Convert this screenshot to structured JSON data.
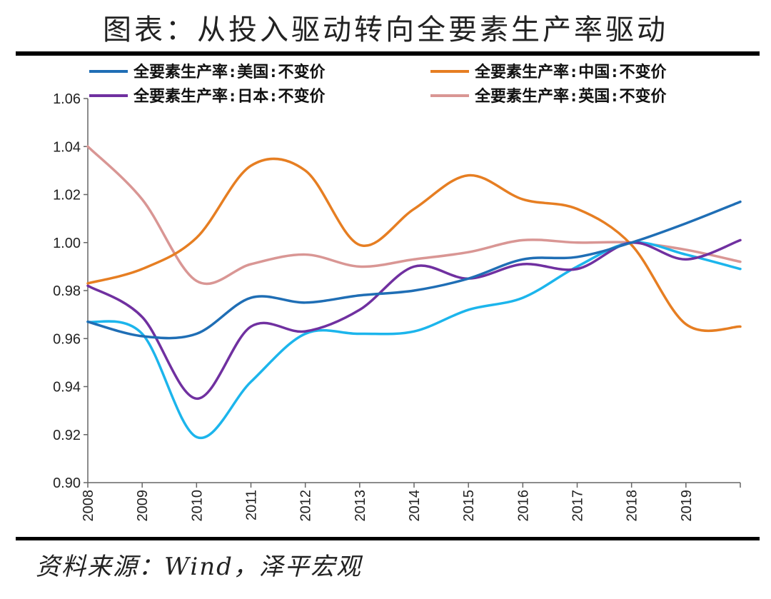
{
  "title": "图表：从投入驱动转向全要素生产率驱动",
  "source": "资料来源：Wind，泽平宏观",
  "chart_data": {
    "type": "line",
    "x": [
      2008,
      2009,
      2010,
      2011,
      2012,
      2013,
      2014,
      2015,
      2016,
      2017,
      2018,
      2019,
      2020
    ],
    "x_tick_labels": [
      "2008",
      "2009",
      "2010",
      "2011",
      "2012",
      "2013",
      "2014",
      "2015",
      "2016",
      "2017",
      "2018",
      "2019"
    ],
    "ylim": [
      0.9,
      1.06
    ],
    "y_ticks": [
      0.9,
      0.92,
      0.94,
      0.96,
      0.98,
      1.0,
      1.02,
      1.04,
      1.06
    ],
    "y_tick_labels": [
      "0.90",
      "0.92",
      "0.94",
      "0.96",
      "0.98",
      "1.00",
      "1.02",
      "1.04",
      "1.06"
    ],
    "legend_position": "top",
    "series": [
      {
        "name": "全要素生产率:美国:不变价",
        "color": "#1f6eb5",
        "values": [
          0.967,
          0.961,
          0.962,
          0.977,
          0.975,
          0.978,
          0.98,
          0.985,
          0.993,
          0.994,
          1.0,
          1.008,
          1.017
        ]
      },
      {
        "name": "全要素生产率:中国:不变价",
        "color": "#e67e22",
        "values": [
          0.983,
          0.989,
          1.002,
          1.032,
          1.03,
          0.999,
          1.014,
          1.028,
          1.018,
          1.014,
          0.999,
          0.966,
          0.965
        ]
      },
      {
        "name": "全要素生产率:日本:不变价",
        "color": "#7030a0",
        "values": [
          0.982,
          0.969,
          0.935,
          0.965,
          0.963,
          0.972,
          0.99,
          0.985,
          0.991,
          0.989,
          1.0,
          0.993,
          1.001
        ]
      },
      {
        "name": "全要素生产率:英国:不变价",
        "color": "#d99694",
        "values": [
          1.04,
          1.018,
          0.984,
          0.991,
          0.995,
          0.99,
          0.993,
          0.996,
          1.001,
          1.0,
          1.0,
          0.997,
          0.992
        ]
      },
      {
        "name": "",
        "color": "#1cb5ec",
        "values": [
          0.967,
          0.962,
          0.919,
          0.942,
          0.962,
          0.962,
          0.963,
          0.972,
          0.977,
          0.99,
          1.0,
          0.995,
          0.989
        ]
      }
    ]
  }
}
